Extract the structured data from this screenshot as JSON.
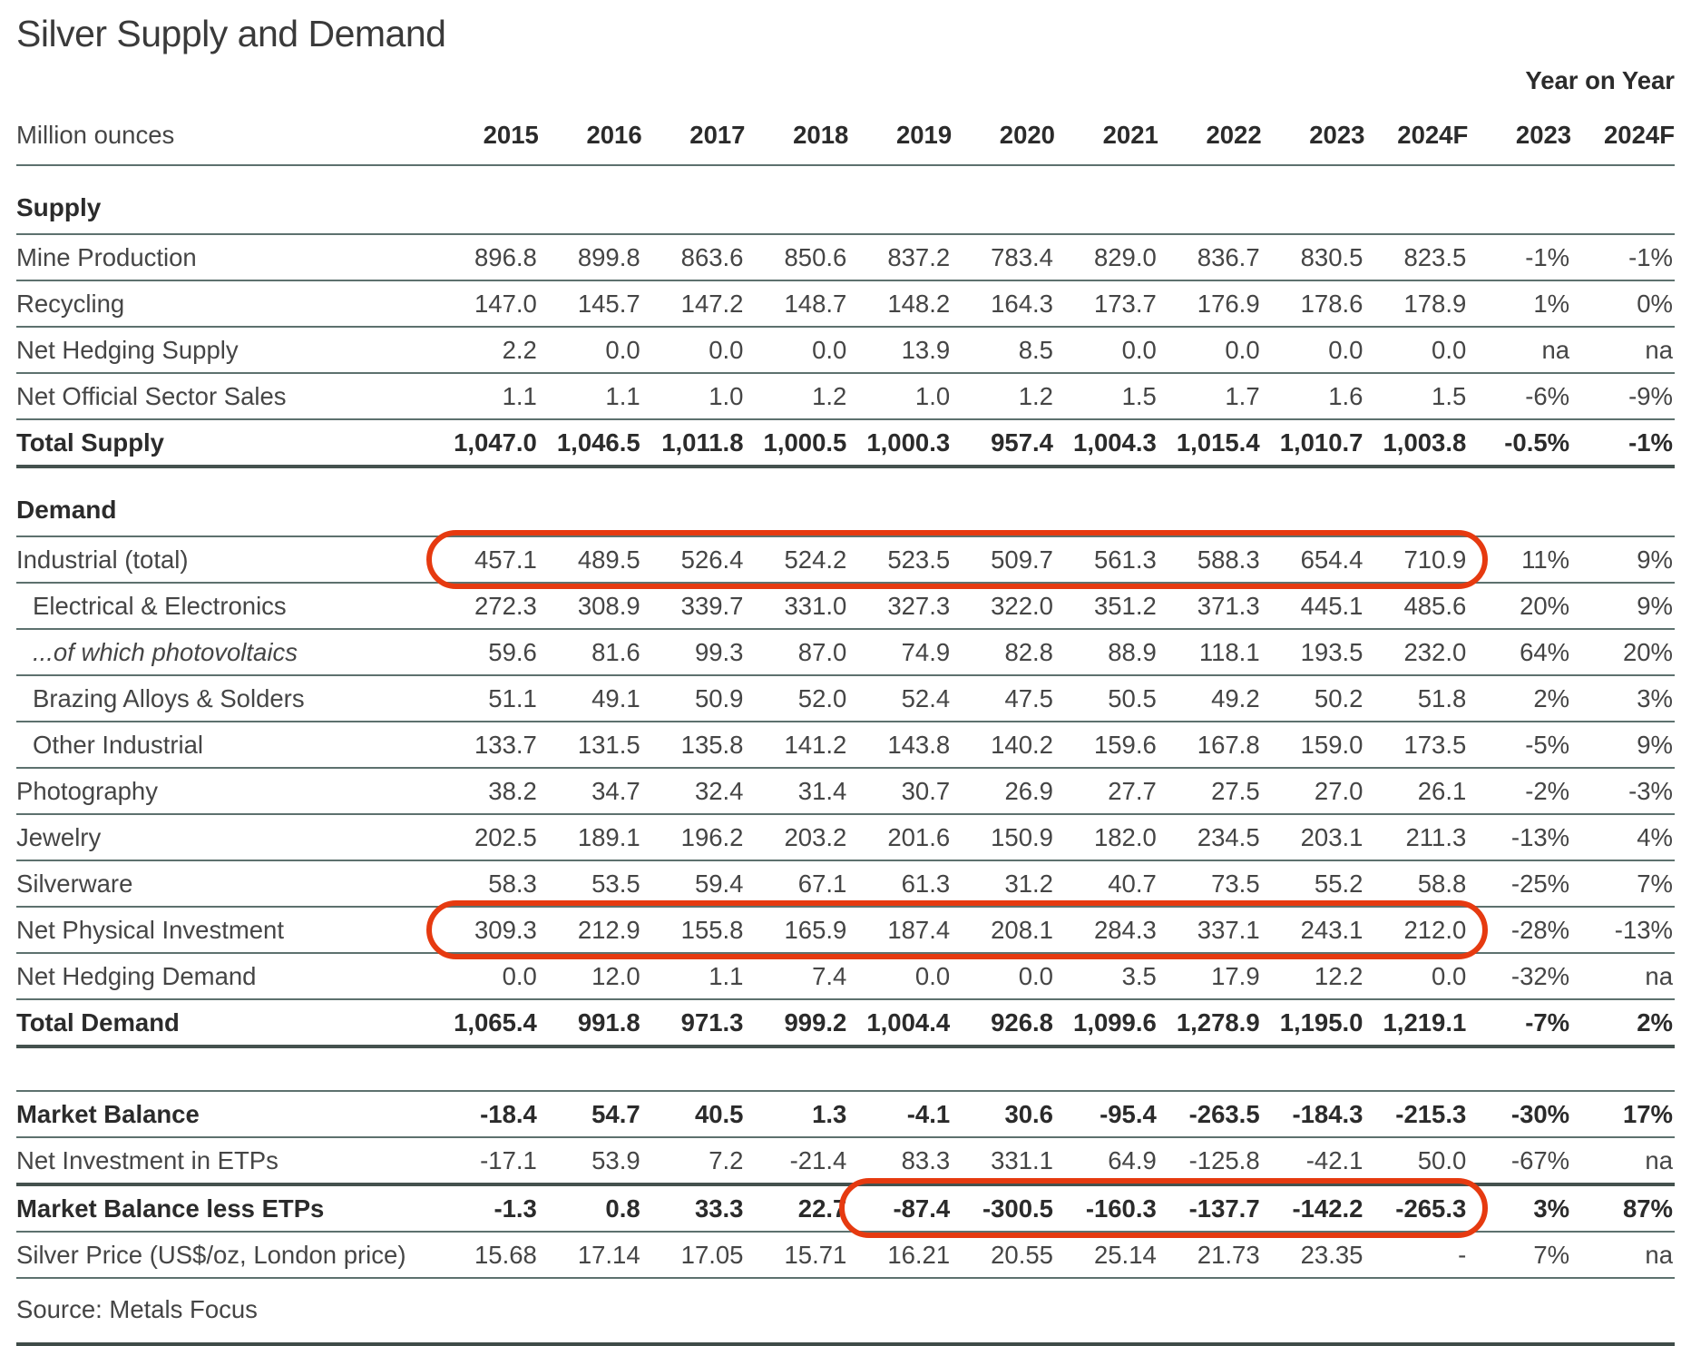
{
  "page": {
    "title": "Silver Supply and Demand",
    "units_label": "Million ounces",
    "yoy_label": "Year on Year",
    "source": "Source: Metals Focus"
  },
  "table": {
    "year_columns": [
      "2015",
      "2016",
      "2017",
      "2018",
      "2019",
      "2020",
      "2021",
      "2022",
      "2023",
      "2024F"
    ],
    "yoy_columns": [
      "2023",
      "2024F"
    ],
    "rows": [
      {
        "type": "section",
        "label": "Supply",
        "rule": "r"
      },
      {
        "type": "data",
        "label": "Mine Production",
        "rule": "r",
        "values": [
          "896.8",
          "899.8",
          "863.6",
          "850.6",
          "837.2",
          "783.4",
          "829.0",
          "836.7",
          "830.5",
          "823.5",
          "-1%",
          "-1%"
        ]
      },
      {
        "type": "data",
        "label": "Recycling",
        "rule": "r",
        "values": [
          "147.0",
          "145.7",
          "147.2",
          "148.7",
          "148.2",
          "164.3",
          "173.7",
          "176.9",
          "178.6",
          "178.9",
          "1%",
          "0%"
        ]
      },
      {
        "type": "data",
        "label": "Net Hedging Supply",
        "rule": "r",
        "values": [
          "2.2",
          "0.0",
          "0.0",
          "0.0",
          "13.9",
          "8.5",
          "0.0",
          "0.0",
          "0.0",
          "0.0",
          "na",
          "na"
        ]
      },
      {
        "type": "data",
        "label": "Net Official Sector Sales",
        "rule": "r",
        "values": [
          "1.1",
          "1.1",
          "1.0",
          "1.2",
          "1.0",
          "1.2",
          "1.5",
          "1.7",
          "1.6",
          "1.5",
          "-6%",
          "-9%"
        ]
      },
      {
        "type": "total",
        "label": "Total Supply",
        "rule": "h",
        "values": [
          "1,047.0",
          "1,046.5",
          "1,011.8",
          "1,000.5",
          "1,000.3",
          "957.4",
          "1,004.3",
          "1,015.4",
          "1,010.7",
          "1,003.8",
          "-0.5%",
          "-1%"
        ]
      },
      {
        "type": "section",
        "label": "Demand",
        "rule": "r"
      },
      {
        "type": "data",
        "label": "Industrial (total)",
        "rule": "r",
        "values": [
          "457.1",
          "489.5",
          "526.4",
          "524.2",
          "523.5",
          "509.7",
          "561.3",
          "588.3",
          "654.4",
          "710.9",
          "11%",
          "9%"
        ]
      },
      {
        "type": "data",
        "label": "Electrical & Electronics",
        "indent": 1,
        "rule": "r",
        "values": [
          "272.3",
          "308.9",
          "339.7",
          "331.0",
          "327.3",
          "322.0",
          "351.2",
          "371.3",
          "445.1",
          "485.6",
          "20%",
          "9%"
        ]
      },
      {
        "type": "data",
        "label": "...of which photovoltaics",
        "indent": 1,
        "italic": 1,
        "rule": "r",
        "values": [
          "59.6",
          "81.6",
          "99.3",
          "87.0",
          "74.9",
          "82.8",
          "88.9",
          "118.1",
          "193.5",
          "232.0",
          "64%",
          "20%"
        ]
      },
      {
        "type": "data",
        "label": "Brazing Alloys & Solders",
        "indent": 1,
        "rule": "r",
        "values": [
          "51.1",
          "49.1",
          "50.9",
          "52.0",
          "52.4",
          "47.5",
          "50.5",
          "49.2",
          "50.2",
          "51.8",
          "2%",
          "3%"
        ]
      },
      {
        "type": "data",
        "label": "Other Industrial",
        "indent": 1,
        "rule": "r",
        "values": [
          "133.7",
          "131.5",
          "135.8",
          "141.2",
          "143.8",
          "140.2",
          "159.6",
          "167.8",
          "159.0",
          "173.5",
          "-5%",
          "9%"
        ]
      },
      {
        "type": "data",
        "label": "Photography",
        "rule": "r",
        "values": [
          "38.2",
          "34.7",
          "32.4",
          "31.4",
          "30.7",
          "26.9",
          "27.7",
          "27.5",
          "27.0",
          "26.1",
          "-2%",
          "-3%"
        ]
      },
      {
        "type": "data",
        "label": "Jewelry",
        "rule": "r",
        "values": [
          "202.5",
          "189.1",
          "196.2",
          "203.2",
          "201.6",
          "150.9",
          "182.0",
          "234.5",
          "203.1",
          "211.3",
          "-13%",
          "4%"
        ]
      },
      {
        "type": "data",
        "label": "Silverware",
        "rule": "r",
        "values": [
          "58.3",
          "53.5",
          "59.4",
          "67.1",
          "61.3",
          "31.2",
          "40.7",
          "73.5",
          "55.2",
          "58.8",
          "-25%",
          "7%"
        ]
      },
      {
        "type": "data",
        "label": "Net Physical Investment",
        "rule": "r",
        "values": [
          "309.3",
          "212.9",
          "155.8",
          "165.9",
          "187.4",
          "208.1",
          "284.3",
          "337.1",
          "243.1",
          "212.0",
          "-28%",
          "-13%"
        ]
      },
      {
        "type": "data",
        "label": "Net Hedging Demand",
        "rule": "r",
        "values": [
          "0.0",
          "12.0",
          "1.1",
          "7.4",
          "0.0",
          "0.0",
          "3.5",
          "17.9",
          "12.2",
          "0.0",
          "-32%",
          "na"
        ]
      },
      {
        "type": "total",
        "label": "Total Demand",
        "rule": "h",
        "values": [
          "1,065.4",
          "991.8",
          "971.3",
          "999.2",
          "1,004.4",
          "926.8",
          "1,099.6",
          "1,278.9",
          "1,195.0",
          "1,219.1",
          "-7%",
          "2%"
        ]
      },
      {
        "type": "spacer",
        "rule": "r"
      },
      {
        "type": "total",
        "label": "Market Balance",
        "rule": "r",
        "values": [
          "-18.4",
          "54.7",
          "40.5",
          "1.3",
          "-4.1",
          "30.6",
          "-95.4",
          "-263.5",
          "-184.3",
          "-215.3",
          "-30%",
          "17%"
        ]
      },
      {
        "type": "data",
        "label": "Net Investment in ETPs",
        "rule": "h",
        "values": [
          "-17.1",
          "53.9",
          "7.2",
          "-21.4",
          "83.3",
          "331.1",
          "64.9",
          "-125.8",
          "-42.1",
          "50.0",
          "-67%",
          "na"
        ]
      },
      {
        "type": "total",
        "label": "Market Balance less ETPs",
        "rule": "r",
        "values": [
          "-1.3",
          "0.8",
          "33.3",
          "22.7",
          "-87.4",
          "-300.5",
          "-160.3",
          "-137.7",
          "-142.2",
          "-265.3",
          "3%",
          "87%"
        ]
      },
      {
        "type": "data",
        "label": "Silver Price (US$/oz, London price)",
        "rule": "r",
        "values": [
          "15.68",
          "17.14",
          "17.05",
          "15.71",
          "16.21",
          "20.55",
          "25.14",
          "21.73",
          "23.35",
          "-",
          "7%",
          "na"
        ]
      }
    ]
  },
  "annotations": {
    "color": "#e63a10",
    "ovals": [
      {
        "name": "industrial-total-highlight",
        "row_index": 7,
        "from_col": 0,
        "to_col": 9
      },
      {
        "name": "net-physical-investment-highlight",
        "row_index": 15,
        "from_col": 0,
        "to_col": 9
      },
      {
        "name": "market-balance-less-etps-highlight",
        "row_index": 21,
        "from_col": 4,
        "to_col": 9
      }
    ]
  }
}
